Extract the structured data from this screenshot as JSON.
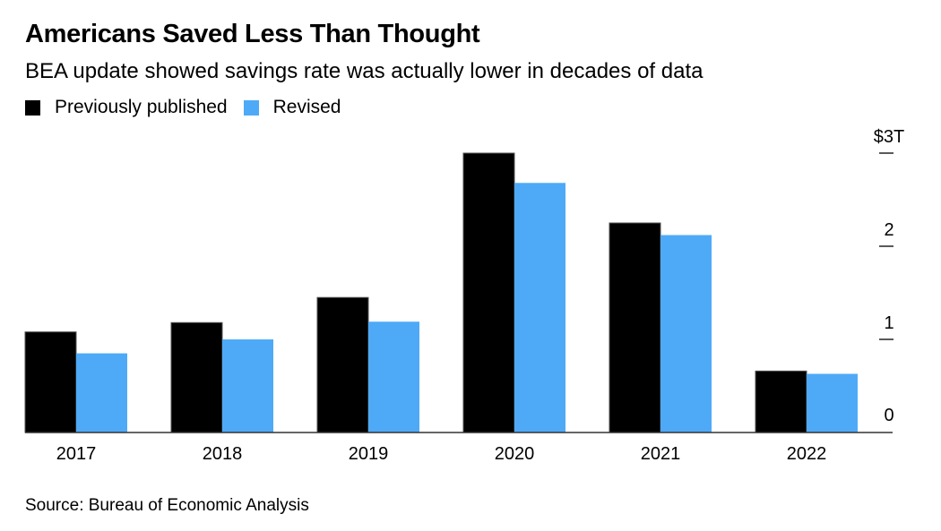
{
  "header": {
    "title": "Americans Saved Less Than Thought",
    "subtitle": "BEA update showed savings rate was actually lower in decades of data"
  },
  "legend": [
    {
      "label": "Previously published",
      "color": "#000000"
    },
    {
      "label": "Revised",
      "color": "#4eaaf7"
    }
  ],
  "footer": {
    "source": "Source: Bureau of Economic Analysis"
  },
  "chart_data": {
    "type": "bar",
    "title": "Americans Saved Less Than Thought",
    "subtitle": "BEA update showed savings rate was actually lower in decades of data",
    "xlabel": "",
    "ylabel": "",
    "categories": [
      "2017",
      "2018",
      "2019",
      "2020",
      "2021",
      "2022"
    ],
    "series": [
      {
        "name": "Previously published",
        "color": "#000000",
        "values": [
          1.08,
          1.18,
          1.45,
          3.0,
          2.25,
          0.66
        ]
      },
      {
        "name": "Revised",
        "color": "#4eaaf7",
        "values": [
          0.85,
          1.0,
          1.19,
          2.68,
          2.12,
          0.63
        ]
      }
    ],
    "ylim": [
      0,
      3
    ],
    "yticks": [
      0,
      1,
      2,
      3
    ],
    "ytick_labels": [
      "0",
      "1",
      "2",
      "$3T"
    ],
    "yaxis_position": "right",
    "grid": false,
    "legend_position": "top-left",
    "unit": "trillions of dollars"
  }
}
